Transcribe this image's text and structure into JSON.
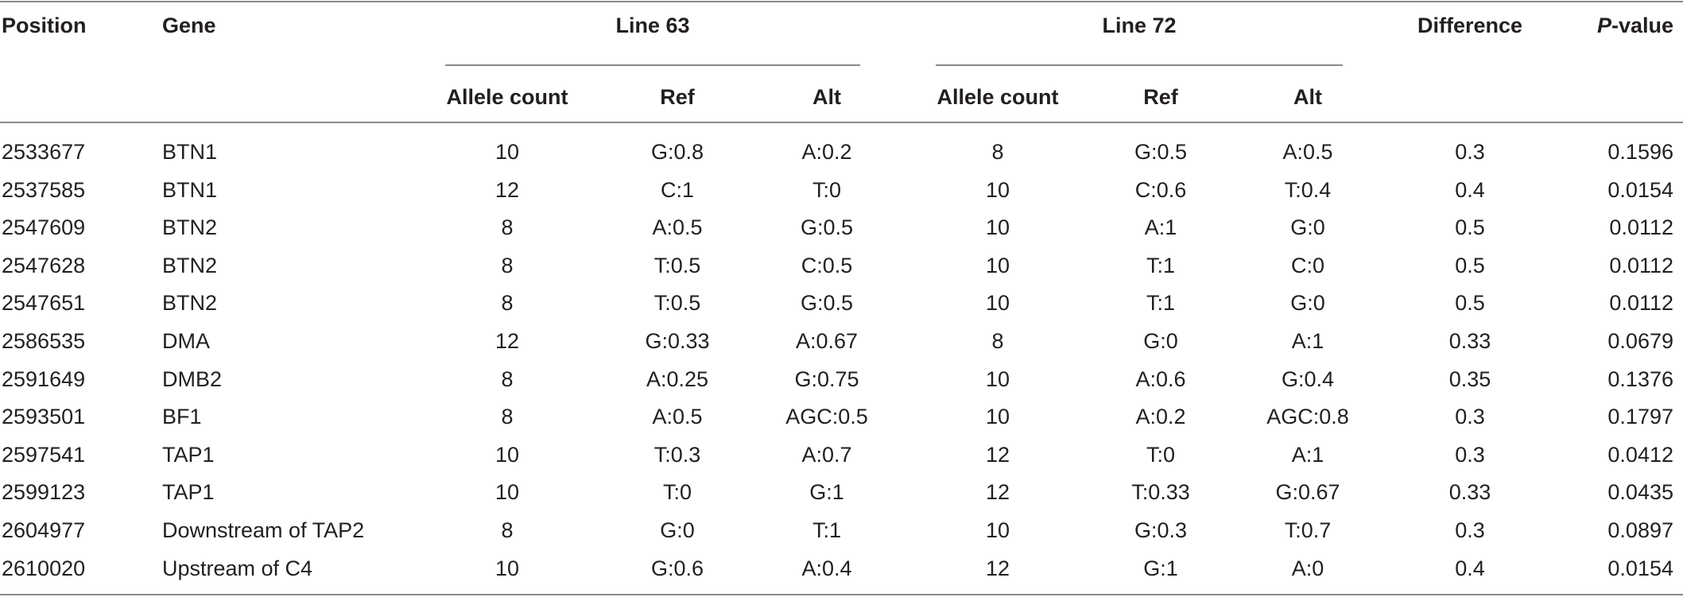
{
  "table": {
    "headers": {
      "position": "Position",
      "gene": "Gene",
      "line63": "Line 63",
      "line72": "Line 72",
      "allele_count": "Allele count",
      "ref": "Ref",
      "alt": "Alt",
      "difference": "Difference",
      "pvalue_italic": "P",
      "pvalue_rest": "-value"
    },
    "rows": [
      {
        "position": "2533677",
        "gene": "BTN1",
        "ac63": "10",
        "ref63": "G:0.8",
        "alt63": "A:0.2",
        "ac72": "8",
        "ref72": "G:0.5",
        "alt72": "A:0.5",
        "difference": "0.3",
        "pvalue": "0.1596"
      },
      {
        "position": "2537585",
        "gene": "BTN1",
        "ac63": "12",
        "ref63": "C:1",
        "alt63": "T:0",
        "ac72": "10",
        "ref72": "C:0.6",
        "alt72": "T:0.4",
        "difference": "0.4",
        "pvalue": "0.0154"
      },
      {
        "position": "2547609",
        "gene": "BTN2",
        "ac63": "8",
        "ref63": "A:0.5",
        "alt63": "G:0.5",
        "ac72": "10",
        "ref72": "A:1",
        "alt72": "G:0",
        "difference": "0.5",
        "pvalue": "0.0112"
      },
      {
        "position": "2547628",
        "gene": "BTN2",
        "ac63": "8",
        "ref63": "T:0.5",
        "alt63": "C:0.5",
        "ac72": "10",
        "ref72": "T:1",
        "alt72": "C:0",
        "difference": "0.5",
        "pvalue": "0.0112"
      },
      {
        "position": "2547651",
        "gene": "BTN2",
        "ac63": "8",
        "ref63": "T:0.5",
        "alt63": "G:0.5",
        "ac72": "10",
        "ref72": "T:1",
        "alt72": "G:0",
        "difference": "0.5",
        "pvalue": "0.0112"
      },
      {
        "position": "2586535",
        "gene": "DMA",
        "ac63": "12",
        "ref63": "G:0.33",
        "alt63": "A:0.67",
        "ac72": "8",
        "ref72": "G:0",
        "alt72": "A:1",
        "difference": "0.33",
        "pvalue": "0.0679"
      },
      {
        "position": "2591649",
        "gene": "DMB2",
        "ac63": "8",
        "ref63": "A:0.25",
        "alt63": "G:0.75",
        "ac72": "10",
        "ref72": "A:0.6",
        "alt72": "G:0.4",
        "difference": "0.35",
        "pvalue": "0.1376"
      },
      {
        "position": "2593501",
        "gene": "BF1",
        "ac63": "8",
        "ref63": "A:0.5",
        "alt63": "AGC:0.5",
        "ac72": "10",
        "ref72": "A:0.2",
        "alt72": "AGC:0.8",
        "difference": "0.3",
        "pvalue": "0.1797"
      },
      {
        "position": "2597541",
        "gene": "TAP1",
        "ac63": "10",
        "ref63": "T:0.3",
        "alt63": "A:0.7",
        "ac72": "12",
        "ref72": "T:0",
        "alt72": "A:1",
        "difference": "0.3",
        "pvalue": "0.0412"
      },
      {
        "position": "2599123",
        "gene": "TAP1",
        "ac63": "10",
        "ref63": "T:0",
        "alt63": "G:1",
        "ac72": "12",
        "ref72": "T:0.33",
        "alt72": "G:0.67",
        "difference": "0.33",
        "pvalue": "0.0435"
      },
      {
        "position": "2604977",
        "gene": "Downstream of TAP2",
        "ac63": "8",
        "ref63": "G:0",
        "alt63": "T:1",
        "ac72": "10",
        "ref72": "G:0.3",
        "alt72": "T:0.7",
        "difference": "0.3",
        "pvalue": "0.0897"
      },
      {
        "position": "2610020",
        "gene": "Upstream of C4",
        "ac63": "10",
        "ref63": "G:0.6",
        "alt63": "A:0.4",
        "ac72": "12",
        "ref72": "G:1",
        "alt72": "A:0",
        "difference": "0.4",
        "pvalue": "0.0154"
      }
    ]
  }
}
